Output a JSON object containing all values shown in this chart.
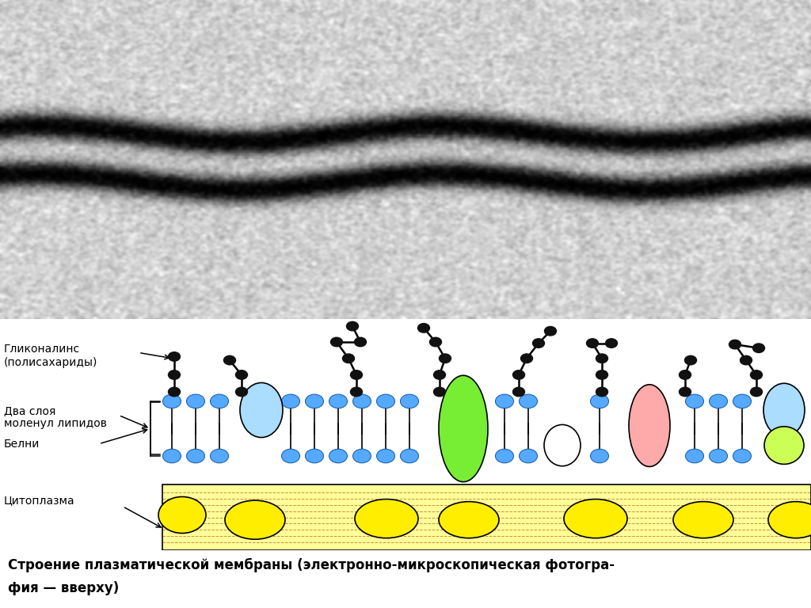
{
  "title_bottom_line1": "Строение плазматической мембраны (электронно-микроскопическая фотогра-",
  "title_bottom_line2": "фия — вверху)",
  "label_glycocalyx_line1": "Гликоналинс",
  "label_glycocalyx_line2": "(полисахариды)",
  "label_lipids_line1": "Два слоя",
  "label_lipids_line2": "моленул липидов",
  "label_proteins": "Белни",
  "label_cytoplasm": "Цитоплазма",
  "bg_color_diagram": "#ffffff",
  "bg_color_cytoplasm": "#ffff99",
  "lipid_head_color": "#55aaff",
  "glycocalyx_node_color": "#111111",
  "yellow_protein_color": "#ffee00",
  "green_protein_color": "#77ee33",
  "light_blue_protein_color": "#aaddff",
  "salmon_protein_color": "#ffaaaa",
  "yellow_green_protein_color": "#ccff55",
  "white_protein_color": "#ffffff",
  "cytoplasm_stripe_color": "#aa4400"
}
